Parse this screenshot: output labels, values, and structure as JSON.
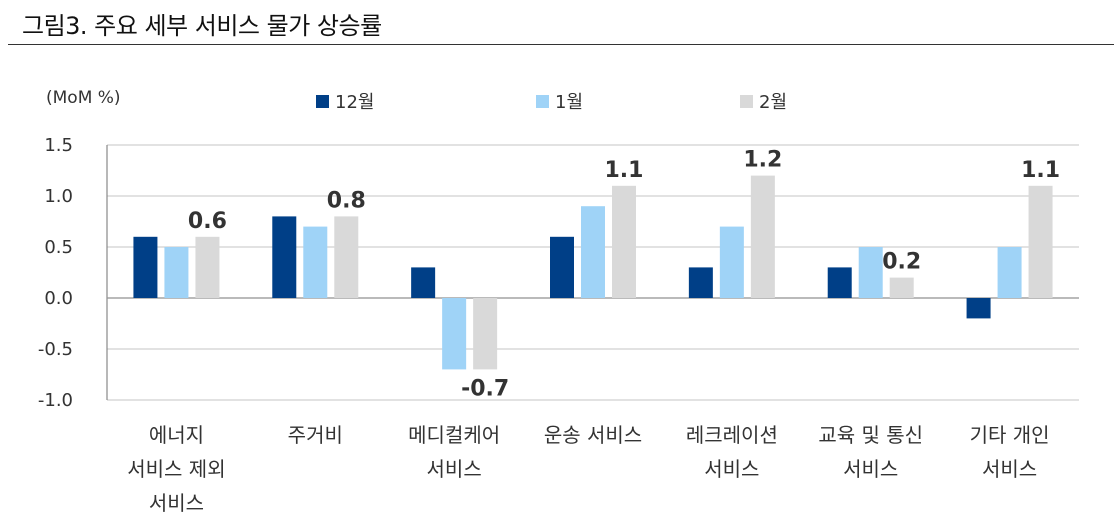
{
  "figure": {
    "title": "그림3.   주요 세부 서비스 물가 상승률"
  },
  "chart_data": {
    "type": "bar",
    "unit_label": "(MoM %)",
    "categories": [
      [
        "에너지",
        "서비스 제외",
        "서비스"
      ],
      [
        "주거비"
      ],
      [
        "메디컬케어",
        "서비스"
      ],
      [
        "운송 서비스"
      ],
      [
        "레크레이션",
        "서비스"
      ],
      [
        "교육 및 통신",
        "서비스"
      ],
      [
        "기타 개인",
        "서비스"
      ]
    ],
    "series": [
      {
        "name": "12월",
        "color": "#003f87",
        "values": [
          0.6,
          0.8,
          0.3,
          0.6,
          0.3,
          0.3,
          -0.2
        ]
      },
      {
        "name": "1월",
        "color": "#9fd3f7",
        "values": [
          0.5,
          0.7,
          -0.7,
          0.9,
          0.7,
          0.5,
          0.5
        ]
      },
      {
        "name": "2월",
        "color": "#d9d9d9",
        "values": [
          0.6,
          0.8,
          -0.7,
          1.1,
          1.2,
          0.2,
          1.1
        ]
      }
    ],
    "data_labels": [
      {
        "series": 2,
        "category": 0,
        "text": "0.6"
      },
      {
        "series": 2,
        "category": 1,
        "text": "0.8"
      },
      {
        "series": 2,
        "category": 2,
        "text": "-0.7"
      },
      {
        "series": 2,
        "category": 3,
        "text": "1.1"
      },
      {
        "series": 2,
        "category": 4,
        "text": "1.2"
      },
      {
        "series": 2,
        "category": 5,
        "text": "0.2"
      },
      {
        "series": 2,
        "category": 6,
        "text": "1.1"
      }
    ],
    "ylim": [
      -1.0,
      1.5
    ],
    "yticks": [
      "1.5",
      "1.0",
      "0.5",
      "0.0",
      "-0.5",
      "-1.0"
    ],
    "grid": true,
    "legend": "top"
  }
}
